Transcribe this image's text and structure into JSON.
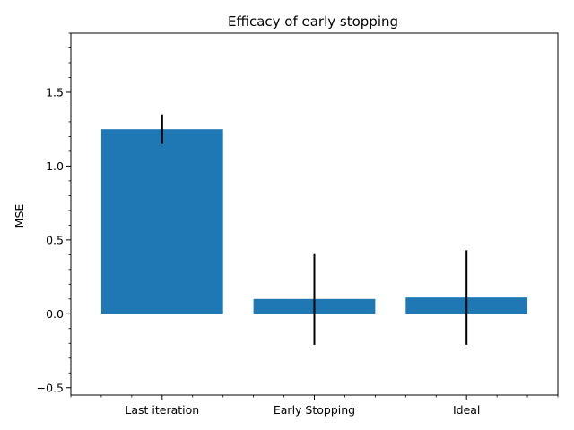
{
  "chart_data": {
    "type": "bar",
    "title": "Efficacy of early stopping",
    "xlabel": "",
    "ylabel": "MSE",
    "categories": [
      "Last iteration",
      "Early Stopping",
      "Ideal"
    ],
    "values": [
      1.25,
      0.1,
      0.11
    ],
    "error": [
      0.1,
      0.31,
      0.32
    ],
    "ylim": [
      -0.55,
      1.9
    ],
    "yticks": [
      -0.5,
      0.0,
      0.5,
      1.0,
      1.5
    ],
    "ytick_labels": [
      "−0.5",
      "0.0",
      "0.5",
      "1.0",
      "1.5"
    ],
    "bar_color": "#1f77b4",
    "error_color": "#000000",
    "grid": false
  }
}
